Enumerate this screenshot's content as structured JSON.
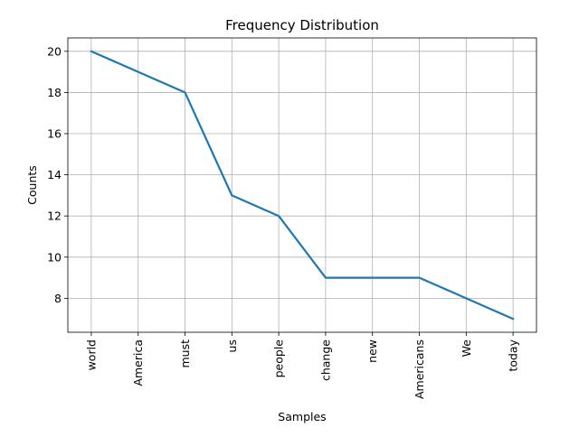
{
  "chart_data": {
    "type": "line",
    "title": "Frequency Distribution",
    "xlabel": "Samples",
    "ylabel": "Counts",
    "categories": [
      "world",
      "America",
      "must",
      "us",
      "people",
      "change",
      "new",
      "Americans",
      "We",
      "today"
    ],
    "series": [
      {
        "values": [
          20,
          19,
          18,
          13,
          12,
          9,
          9,
          9,
          8,
          7
        ],
        "color": "#1f77b4"
      }
    ],
    "ylim": [
      6.35,
      20.65
    ],
    "yticks": [
      8,
      10,
      12,
      14,
      16,
      18,
      20
    ],
    "grid": true,
    "legend": "none"
  }
}
